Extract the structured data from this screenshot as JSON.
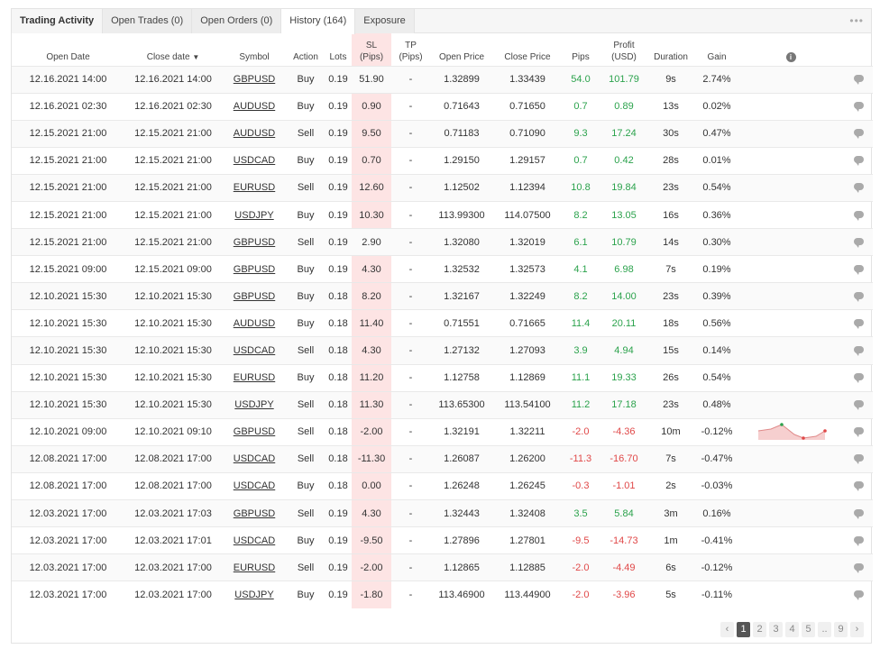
{
  "tabs": [
    {
      "label": "Trading Activity"
    },
    {
      "label": "Open Trades (0)"
    },
    {
      "label": "Open Orders (0)"
    },
    {
      "label": "History (164)"
    },
    {
      "label": "Exposure"
    }
  ],
  "more_label": "•••",
  "columns": {
    "open_date": "Open Date",
    "close_date": "Close date",
    "symbol": "Symbol",
    "action": "Action",
    "lots": "Lots",
    "sl_top": "SL",
    "sl_bottom": "(Pips)",
    "tp_top": "TP",
    "tp_bottom": "(Pips)",
    "open_price": "Open Price",
    "close_price": "Close Price",
    "pips": "Pips",
    "profit_top": "Profit",
    "profit_bottom": "(USD)",
    "duration": "Duration",
    "gain": "Gain"
  },
  "sort_caret": "▼",
  "info_icon": "i",
  "rows": [
    {
      "open": "12.16.2021 14:00",
      "close": "12.16.2021 14:00",
      "symbol": "GBPUSD",
      "action": "Buy",
      "lots": "0.19",
      "sl": "51.90",
      "sl_hl": false,
      "tp": "-",
      "op": "1.32899",
      "cp": "1.33439",
      "pips": "54.0",
      "profit": "101.79",
      "sign": "pos",
      "dur": "9s",
      "gain": "2.74%"
    },
    {
      "open": "12.16.2021 02:30",
      "close": "12.16.2021 02:30",
      "symbol": "AUDUSD",
      "action": "Buy",
      "lots": "0.19",
      "sl": "0.90",
      "sl_hl": true,
      "tp": "-",
      "op": "0.71643",
      "cp": "0.71650",
      "pips": "0.7",
      "profit": "0.89",
      "sign": "pos",
      "dur": "13s",
      "gain": "0.02%"
    },
    {
      "open": "12.15.2021 21:00",
      "close": "12.15.2021 21:00",
      "symbol": "AUDUSD",
      "action": "Sell",
      "lots": "0.19",
      "sl": "9.50",
      "sl_hl": true,
      "tp": "-",
      "op": "0.71183",
      "cp": "0.71090",
      "pips": "9.3",
      "profit": "17.24",
      "sign": "pos",
      "dur": "30s",
      "gain": "0.47%"
    },
    {
      "open": "12.15.2021 21:00",
      "close": "12.15.2021 21:00",
      "symbol": "USDCAD",
      "action": "Buy",
      "lots": "0.19",
      "sl": "0.70",
      "sl_hl": true,
      "tp": "-",
      "op": "1.29150",
      "cp": "1.29157",
      "pips": "0.7",
      "profit": "0.42",
      "sign": "pos",
      "dur": "28s",
      "gain": "0.01%"
    },
    {
      "open": "12.15.2021 21:00",
      "close": "12.15.2021 21:00",
      "symbol": "EURUSD",
      "action": "Sell",
      "lots": "0.19",
      "sl": "12.60",
      "sl_hl": true,
      "tp": "-",
      "op": "1.12502",
      "cp": "1.12394",
      "pips": "10.8",
      "profit": "19.84",
      "sign": "pos",
      "dur": "23s",
      "gain": "0.54%"
    },
    {
      "open": "12.15.2021 21:00",
      "close": "12.15.2021 21:00",
      "symbol": "USDJPY",
      "action": "Buy",
      "lots": "0.19",
      "sl": "10.30",
      "sl_hl": true,
      "tp": "-",
      "op": "113.99300",
      "cp": "114.07500",
      "pips": "8.2",
      "profit": "13.05",
      "sign": "pos",
      "dur": "16s",
      "gain": "0.36%"
    },
    {
      "open": "12.15.2021 21:00",
      "close": "12.15.2021 21:00",
      "symbol": "GBPUSD",
      "action": "Sell",
      "lots": "0.19",
      "sl": "2.90",
      "sl_hl": false,
      "tp": "-",
      "op": "1.32080",
      "cp": "1.32019",
      "pips": "6.1",
      "profit": "10.79",
      "sign": "pos",
      "dur": "14s",
      "gain": "0.30%"
    },
    {
      "open": "12.15.2021 09:00",
      "close": "12.15.2021 09:00",
      "symbol": "GBPUSD",
      "action": "Buy",
      "lots": "0.19",
      "sl": "4.30",
      "sl_hl": true,
      "tp": "-",
      "op": "1.32532",
      "cp": "1.32573",
      "pips": "4.1",
      "profit": "6.98",
      "sign": "pos",
      "dur": "7s",
      "gain": "0.19%"
    },
    {
      "open": "12.10.2021 15:30",
      "close": "12.10.2021 15:30",
      "symbol": "GBPUSD",
      "action": "Buy",
      "lots": "0.18",
      "sl": "8.20",
      "sl_hl": true,
      "tp": "-",
      "op": "1.32167",
      "cp": "1.32249",
      "pips": "8.2",
      "profit": "14.00",
      "sign": "pos",
      "dur": "23s",
      "gain": "0.39%"
    },
    {
      "open": "12.10.2021 15:30",
      "close": "12.10.2021 15:30",
      "symbol": "AUDUSD",
      "action": "Buy",
      "lots": "0.18",
      "sl": "11.40",
      "sl_hl": true,
      "tp": "-",
      "op": "0.71551",
      "cp": "0.71665",
      "pips": "11.4",
      "profit": "20.11",
      "sign": "pos",
      "dur": "18s",
      "gain": "0.56%"
    },
    {
      "open": "12.10.2021 15:30",
      "close": "12.10.2021 15:30",
      "symbol": "USDCAD",
      "action": "Sell",
      "lots": "0.18",
      "sl": "4.30",
      "sl_hl": true,
      "tp": "-",
      "op": "1.27132",
      "cp": "1.27093",
      "pips": "3.9",
      "profit": "4.94",
      "sign": "pos",
      "dur": "15s",
      "gain": "0.14%"
    },
    {
      "open": "12.10.2021 15:30",
      "close": "12.10.2021 15:30",
      "symbol": "EURUSD",
      "action": "Buy",
      "lots": "0.18",
      "sl": "11.20",
      "sl_hl": true,
      "tp": "-",
      "op": "1.12758",
      "cp": "1.12869",
      "pips": "11.1",
      "profit": "19.33",
      "sign": "pos",
      "dur": "26s",
      "gain": "0.54%"
    },
    {
      "open": "12.10.2021 15:30",
      "close": "12.10.2021 15:30",
      "symbol": "USDJPY",
      "action": "Sell",
      "lots": "0.18",
      "sl": "11.30",
      "sl_hl": true,
      "tp": "-",
      "op": "113.65300",
      "cp": "113.54100",
      "pips": "11.2",
      "profit": "17.18",
      "sign": "pos",
      "dur": "23s",
      "gain": "0.48%"
    },
    {
      "open": "12.10.2021 09:00",
      "close": "12.10.2021 09:10",
      "symbol": "GBPUSD",
      "action": "Sell",
      "lots": "0.18",
      "sl": "-2.00",
      "sl_hl": true,
      "tp": "-",
      "op": "1.32191",
      "cp": "1.32211",
      "pips": "-2.0",
      "profit": "-4.36",
      "sign": "neg",
      "dur": "10m",
      "gain": "-0.12%",
      "spark": true
    },
    {
      "open": "12.08.2021 17:00",
      "close": "12.08.2021 17:00",
      "symbol": "USDCAD",
      "action": "Sell",
      "lots": "0.18",
      "sl": "-11.30",
      "sl_hl": true,
      "tp": "-",
      "op": "1.26087",
      "cp": "1.26200",
      "pips": "-11.3",
      "profit": "-16.70",
      "sign": "neg",
      "dur": "7s",
      "gain": "-0.47%"
    },
    {
      "open": "12.08.2021 17:00",
      "close": "12.08.2021 17:00",
      "symbol": "USDCAD",
      "action": "Buy",
      "lots": "0.18",
      "sl": "0.00",
      "sl_hl": true,
      "tp": "-",
      "op": "1.26248",
      "cp": "1.26245",
      "pips": "-0.3",
      "profit": "-1.01",
      "sign": "neg",
      "dur": "2s",
      "gain": "-0.03%"
    },
    {
      "open": "12.03.2021 17:00",
      "close": "12.03.2021 17:03",
      "symbol": "GBPUSD",
      "action": "Sell",
      "lots": "0.19",
      "sl": "4.30",
      "sl_hl": true,
      "tp": "-",
      "op": "1.32443",
      "cp": "1.32408",
      "pips": "3.5",
      "profit": "5.84",
      "sign": "pos",
      "dur": "3m",
      "gain": "0.16%"
    },
    {
      "open": "12.03.2021 17:00",
      "close": "12.03.2021 17:01",
      "symbol": "USDCAD",
      "action": "Buy",
      "lots": "0.19",
      "sl": "-9.50",
      "sl_hl": true,
      "tp": "-",
      "op": "1.27896",
      "cp": "1.27801",
      "pips": "-9.5",
      "profit": "-14.73",
      "sign": "neg",
      "dur": "1m",
      "gain": "-0.41%"
    },
    {
      "open": "12.03.2021 17:00",
      "close": "12.03.2021 17:00",
      "symbol": "EURUSD",
      "action": "Sell",
      "lots": "0.19",
      "sl": "-2.00",
      "sl_hl": true,
      "tp": "-",
      "op": "1.12865",
      "cp": "1.12885",
      "pips": "-2.0",
      "profit": "-4.49",
      "sign": "neg",
      "dur": "6s",
      "gain": "-0.12%"
    },
    {
      "open": "12.03.2021 17:00",
      "close": "12.03.2021 17:00",
      "symbol": "USDJPY",
      "action": "Buy",
      "lots": "0.19",
      "sl": "-1.80",
      "sl_hl": true,
      "tp": "-",
      "op": "113.46900",
      "cp": "113.44900",
      "pips": "-2.0",
      "profit": "-3.96",
      "sign": "neg",
      "dur": "5s",
      "gain": "-0.11%"
    }
  ],
  "pagination": {
    "prev": "‹",
    "pages": [
      "1",
      "2",
      "3",
      "4",
      "5",
      "..",
      "9"
    ],
    "active": "1",
    "next": "›"
  },
  "colors": {
    "positive": "#2ba24c",
    "negative": "#e04848",
    "sl_highlight": "#fde4e4"
  }
}
